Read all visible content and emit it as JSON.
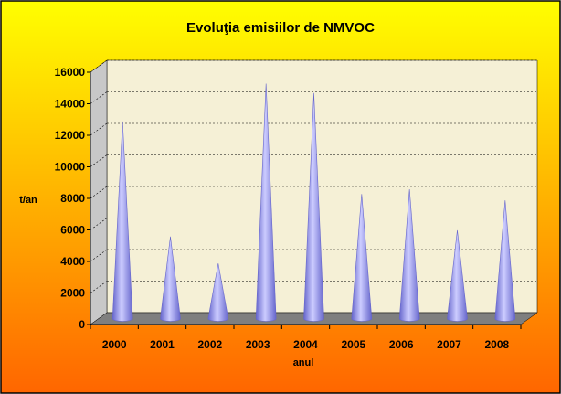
{
  "colors": {
    "background_top": "#FFFF00",
    "background_bottom": "#FF6600",
    "plot_wall": "#F5F0D6",
    "plot_floor": "#7F7F7F",
    "gridline": "#000000",
    "cone_light": "#CCCCFF",
    "cone_dark": "#6666CC"
  },
  "chart_data": {
    "type": "bar",
    "bar_shape": "cone",
    "title": "Evoluţia emisiilor de NMVOC",
    "xlabel": "anul",
    "ylabel": "t/an",
    "ylim": [
      0,
      16000
    ],
    "yticks": [
      0,
      2000,
      4000,
      6000,
      8000,
      10000,
      12000,
      14000,
      16000
    ],
    "grid": true,
    "legend": "none",
    "categories": [
      "2000",
      "2001",
      "2002",
      "2003",
      "2004",
      "2005",
      "2006",
      "2007",
      "2008"
    ],
    "values": [
      12500,
      5200,
      3500,
      14900,
      14300,
      7900,
      8200,
      5600,
      7500
    ]
  }
}
